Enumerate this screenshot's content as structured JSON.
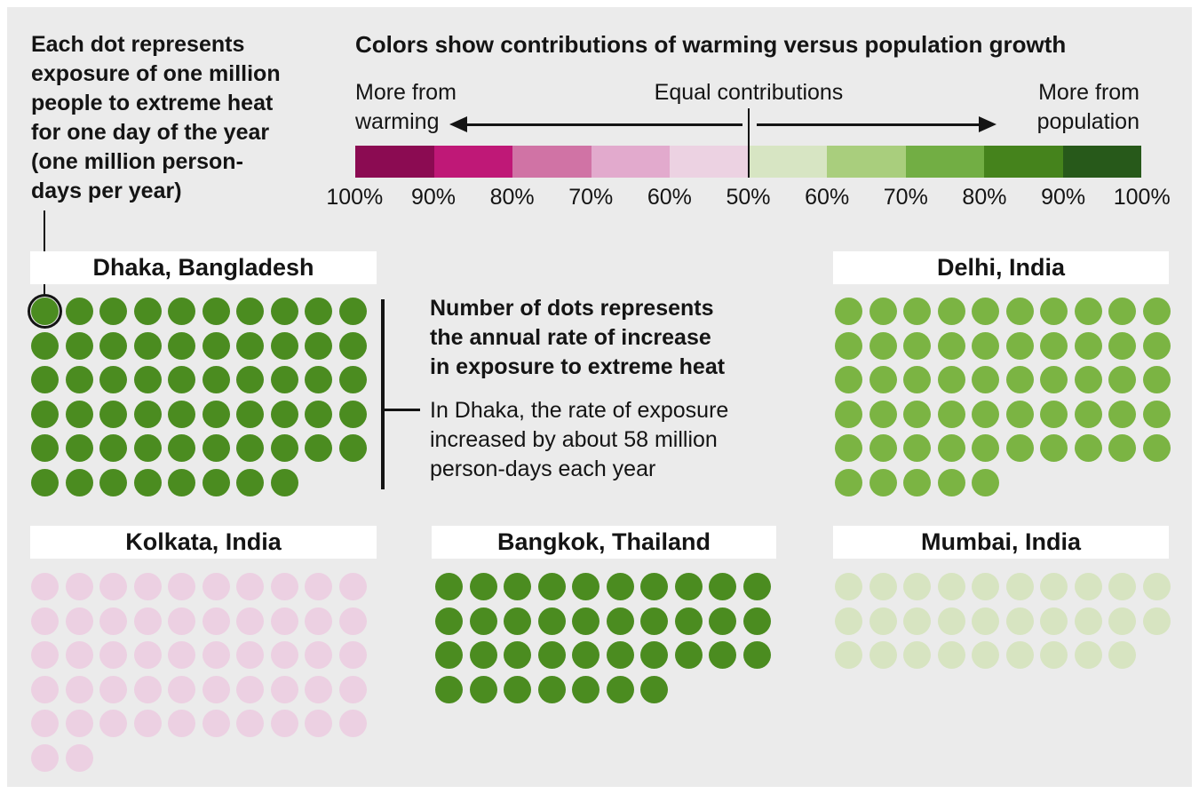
{
  "figure": {
    "background": "#ebebeb",
    "dot_note_lines": [
      "Each dot represents",
      "exposure of one million",
      "people to extreme heat",
      "for one day of the year",
      "(one million person-",
      "days per year)"
    ],
    "warming_label_lines": [
      "More from",
      "warming"
    ],
    "population_label_lines": [
      "More from",
      "population"
    ],
    "anno_bold_lines": [
      "Number of dots represents",
      "the annual rate of increase",
      "in exposure to extreme heat"
    ],
    "anno_detail_lines": [
      "In Dhaka, the rate of exposure",
      "increased by about 58 million",
      "person-days each year"
    ]
  },
  "chart_data": {
    "type": "dot-matrix",
    "title": "Colors show contributions of warming versus population growth",
    "dot_unit": "one million person-days per year per dot",
    "dots_per_row": 10,
    "series": [
      {
        "city": "Dhaka, Bangladesh",
        "dots": 58,
        "color": "#4b8c20",
        "highlight_first_dot": true
      },
      {
        "city": "Delhi, India",
        "dots": 55,
        "color": "#7bb443",
        "highlight_first_dot": false
      },
      {
        "city": "Kolkata, India",
        "dots": 52,
        "color": "#ecd0e2",
        "highlight_first_dot": false
      },
      {
        "city": "Bangkok, Thailand",
        "dots": 37,
        "color": "#4b8c20",
        "highlight_first_dot": false
      },
      {
        "city": "Mumbai, India",
        "dots": 29,
        "color": "#d7e4c1",
        "highlight_first_dot": false
      }
    ],
    "color_scale": {
      "left_end_label": "More from warming",
      "center_label": "Equal contributions",
      "right_end_label": "More from population",
      "segment_colors": [
        "#8b0b52",
        "#bf1877",
        "#d073a5",
        "#e2aacd",
        "#ecd2e2",
        "#d7e5c3",
        "#a9ce7d",
        "#72ae44",
        "#45831c",
        "#27591a"
      ],
      "tick_labels": [
        "100%",
        "90%",
        "80%",
        "70%",
        "60%",
        "50%",
        "60%",
        "70%",
        "80%",
        "90%",
        "100%"
      ]
    },
    "annotations": {
      "dot_note": "Each dot represents exposure of one million people to extreme heat for one day of the year (one million person-days per year)",
      "count_note": "Number of dots represents the annual rate of increase in exposure to extreme heat",
      "dhaka_note": "In Dhaka, the rate of exposure increased by about 58 million person-days each year"
    }
  }
}
